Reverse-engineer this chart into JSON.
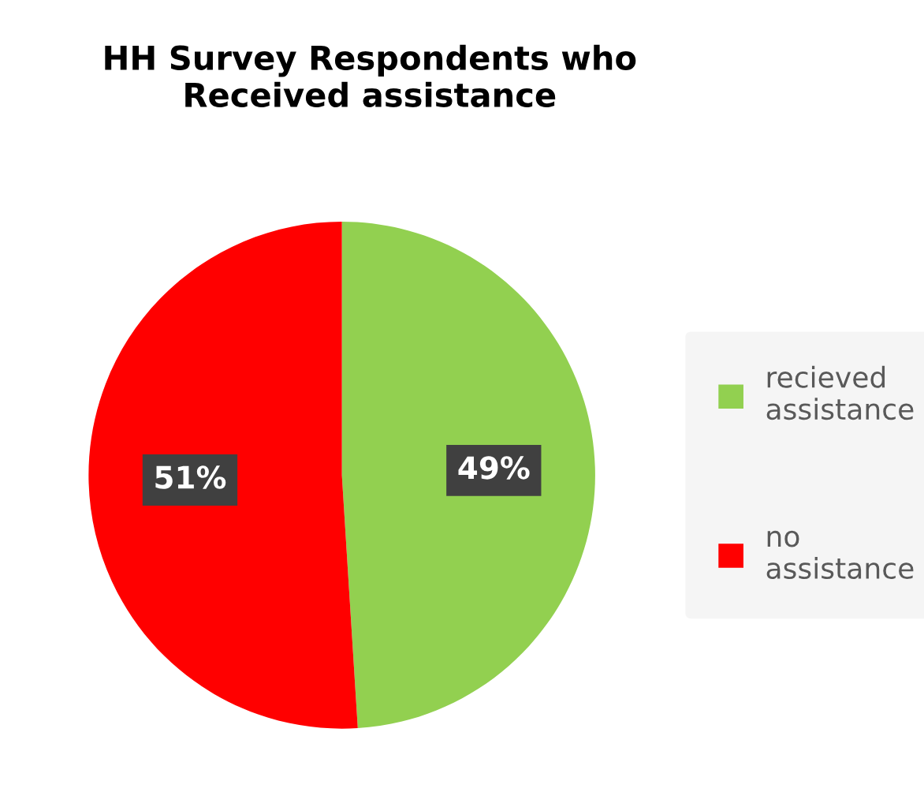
{
  "chart_data": {
    "type": "pie",
    "title": "HH Survey Respondents who\nReceived assistance",
    "categories": [
      "recieved\nassistance",
      "no\nassistance"
    ],
    "values": [
      49,
      51
    ],
    "colors": [
      "#92d050",
      "#ff0000"
    ],
    "value_labels": [
      "49%",
      "51%"
    ],
    "legend": "right"
  }
}
